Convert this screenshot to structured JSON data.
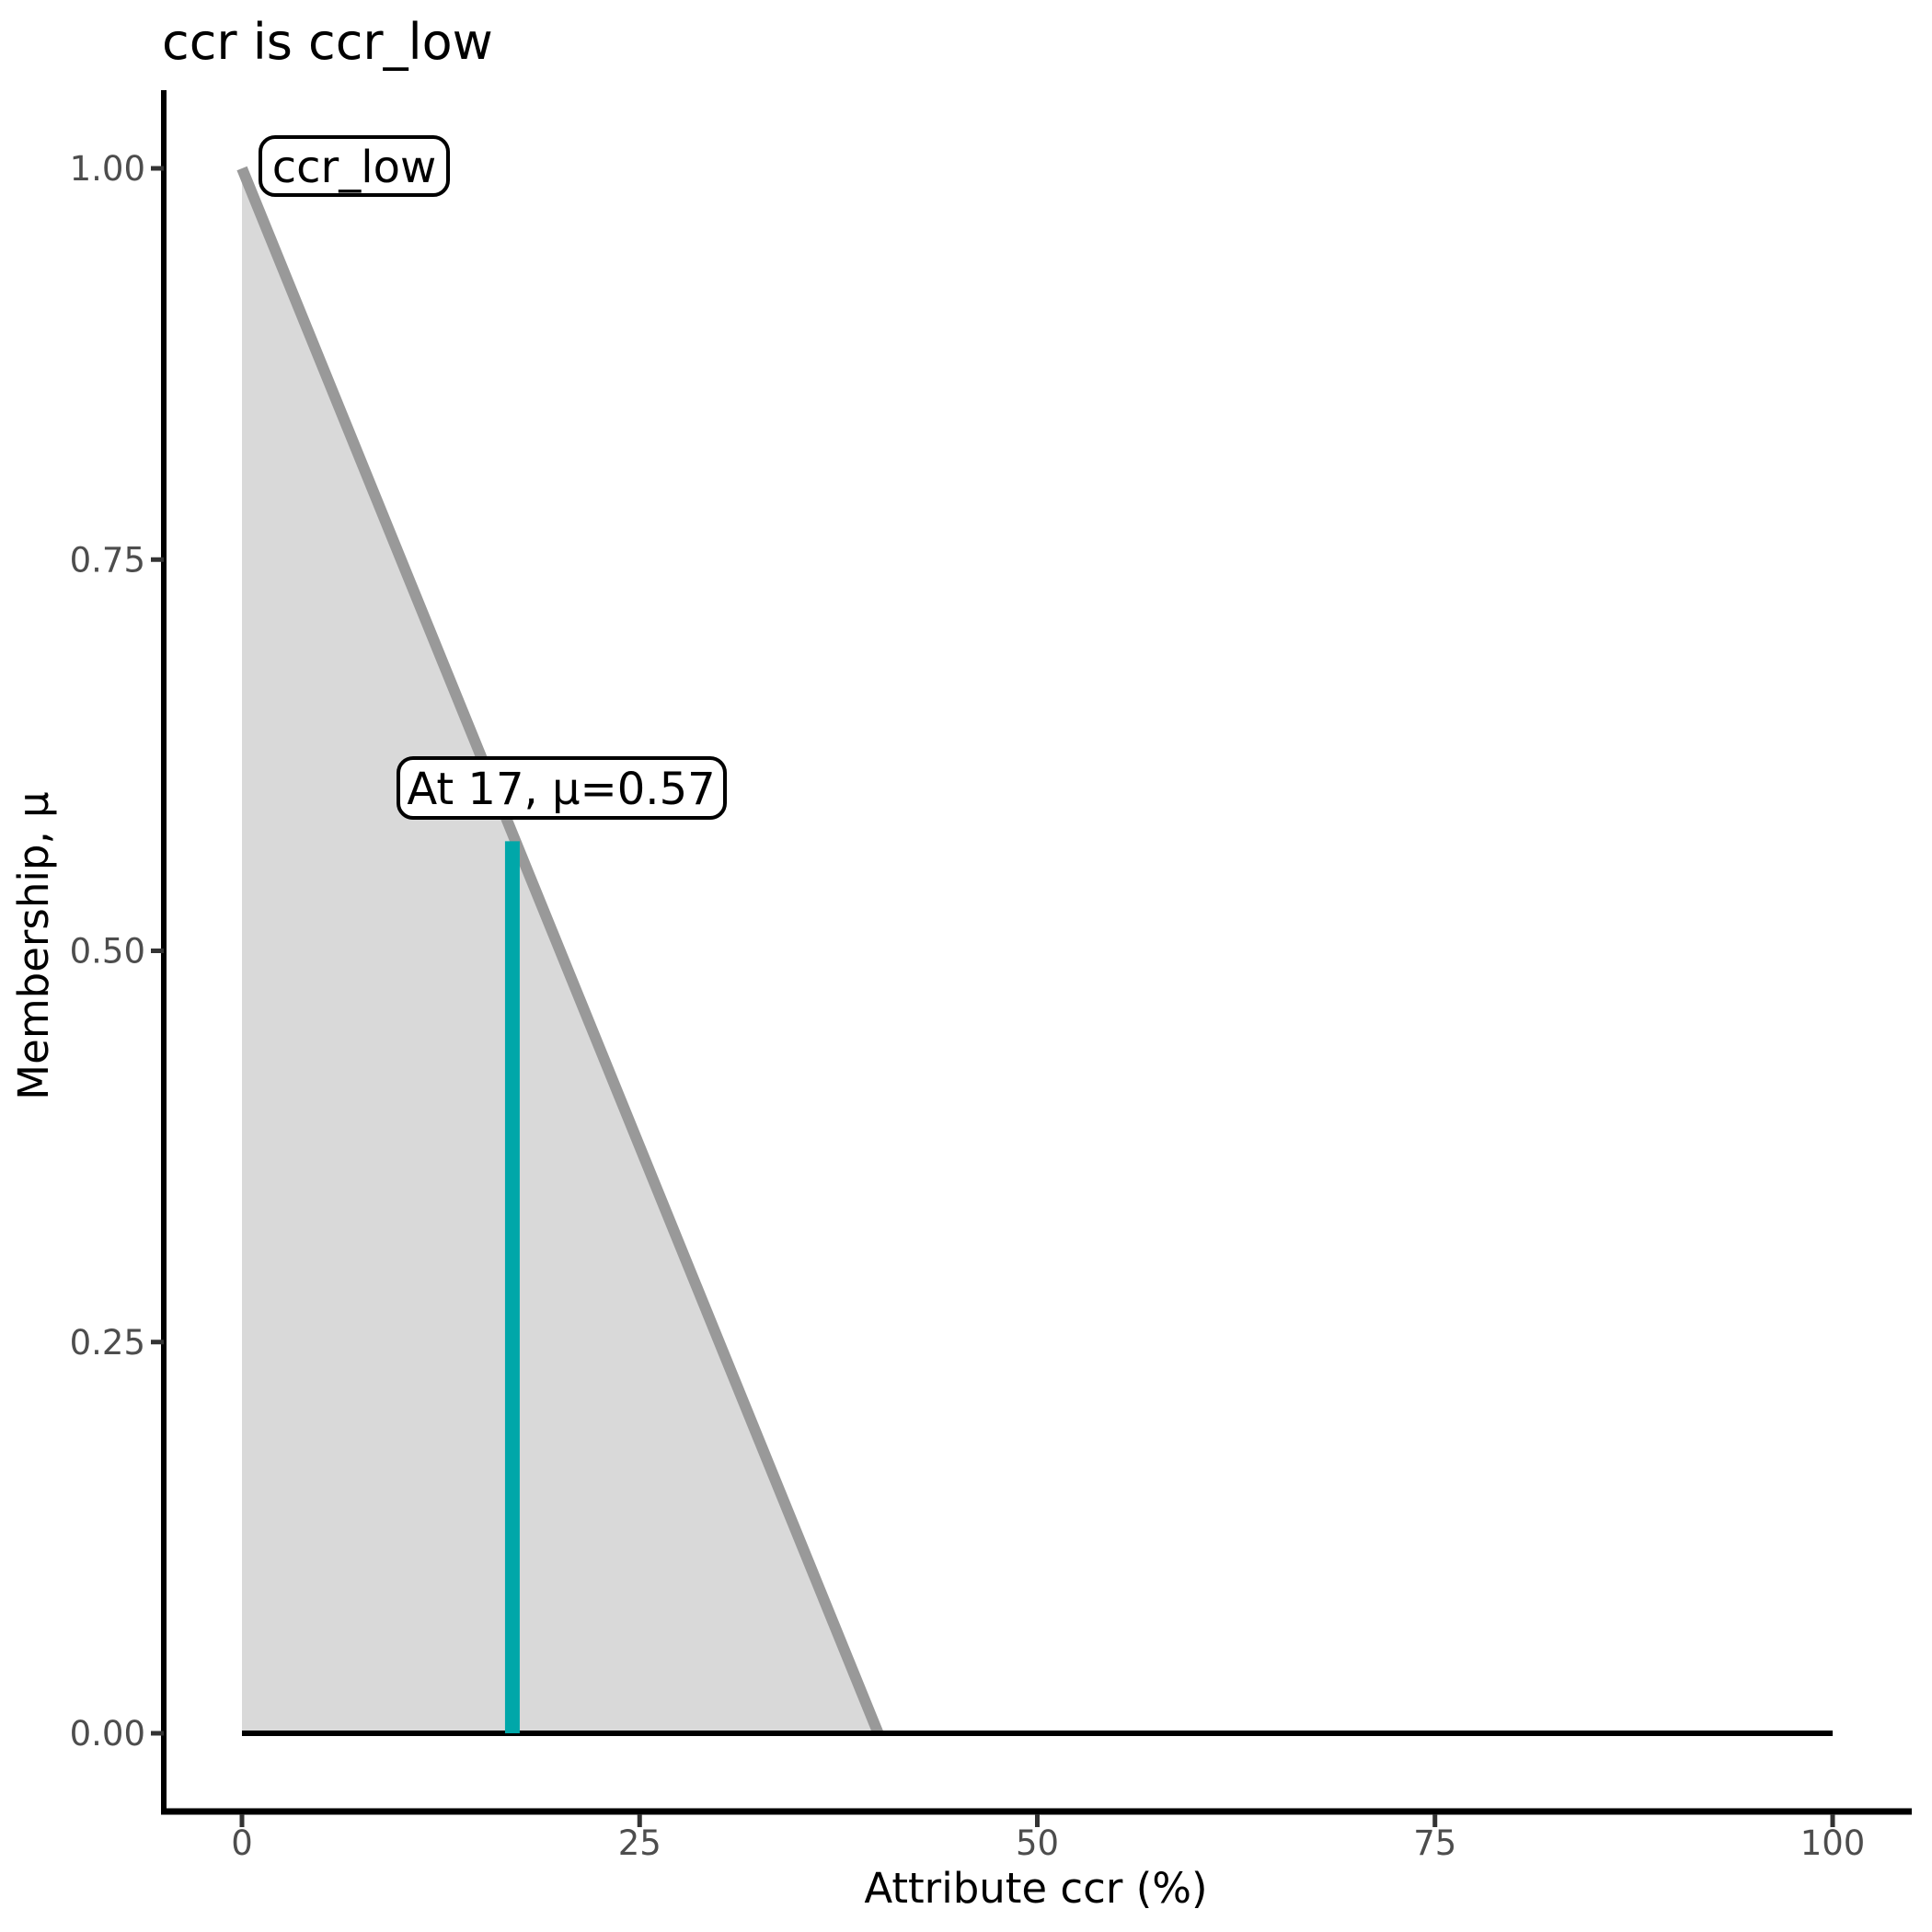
{
  "chart_data": {
    "type": "area",
    "title": "ccr is ccr_low",
    "xlabel": "Attribute ccr (%)",
    "ylabel": "Membership, μ",
    "xlim": [
      0,
      100
    ],
    "ylim": [
      0,
      1
    ],
    "grid": false,
    "legend": "none",
    "x_ticks": [
      0,
      25,
      50,
      75,
      100
    ],
    "x_tick_labels": [
      "0",
      "25",
      "50",
      "75",
      "100"
    ],
    "y_ticks": [
      0,
      0.25,
      0.5,
      0.75,
      1.0
    ],
    "y_tick_labels": [
      "0.00",
      "0.25",
      "0.50",
      "0.75",
      "1.00"
    ],
    "series": [
      {
        "name": "ccr_low",
        "kind": "membership-function",
        "points": [
          [
            0,
            1.0
          ],
          [
            40,
            0.0
          ]
        ],
        "fill_color": "#D9D9D9",
        "line_color": "#999999"
      }
    ],
    "baseline": {
      "y": 0,
      "x_range": [
        0,
        100
      ],
      "color": "#000000"
    },
    "annotation": {
      "x": 17,
      "mu": 0.57,
      "label": "At 17, μ=0.57",
      "line_color": "#00A7A9"
    },
    "set_label": "ccr_low"
  },
  "colors": {
    "background": "#FFFFFF",
    "axis": "#000000",
    "tick": "#333333",
    "tick_text": "#4D4D4D",
    "function_line": "#999999",
    "function_fill": "#D9D9D9",
    "marker_line": "#00A7A9",
    "baseline": "#000000"
  }
}
